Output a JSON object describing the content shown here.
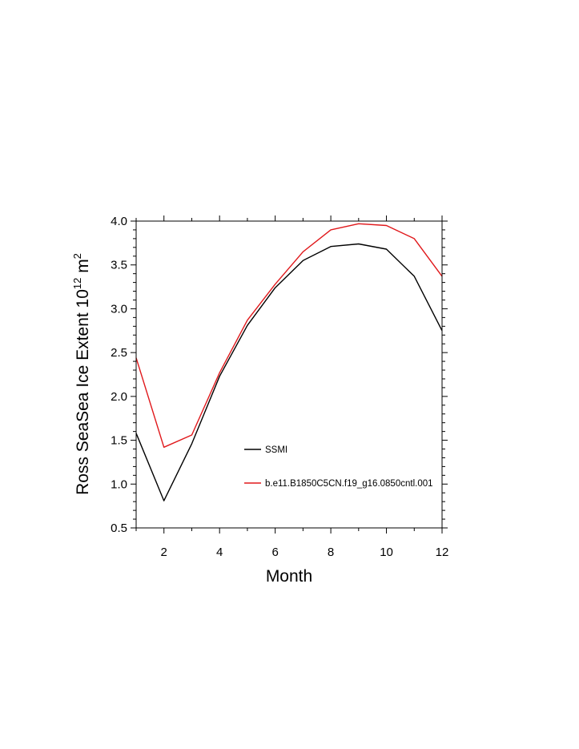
{
  "chart_data": {
    "type": "line",
    "xlabel": "Month",
    "ylabel_main": "Ross SeaSea Ice Extent 10",
    "ylabel_sup1": "12",
    "ylabel_unit": " m",
    "ylabel_sup2": "2",
    "xlim": [
      1,
      12
    ],
    "ylim": [
      0.5,
      4.0
    ],
    "x_ticks": [
      2,
      4,
      6,
      8,
      10,
      12
    ],
    "x_tick_labels": [
      "2",
      "4",
      "6",
      "8",
      "10",
      "12"
    ],
    "y_ticks": [
      0.5,
      1.0,
      1.5,
      2.0,
      2.5,
      3.0,
      3.5,
      4.0
    ],
    "y_tick_labels": [
      "0.5",
      "1.0",
      "1.5",
      "2.0",
      "2.5",
      "3.0",
      "3.5",
      "4.0"
    ],
    "x": [
      1,
      2,
      3,
      4,
      5,
      6,
      7,
      8,
      9,
      10,
      11,
      12
    ],
    "series": [
      {
        "name": "SSMI",
        "color": "#000000",
        "values": [
          1.58,
          0.81,
          1.46,
          2.23,
          2.81,
          3.24,
          3.55,
          3.71,
          3.74,
          3.68,
          3.37,
          2.75
        ]
      },
      {
        "name": "b.e11.B1850C5CN.f19_g16.0850cntl.001",
        "color": "#e0181b",
        "values": [
          2.44,
          1.42,
          1.56,
          2.27,
          2.87,
          3.28,
          3.65,
          3.9,
          3.97,
          3.95,
          3.8,
          3.37
        ]
      }
    ]
  }
}
